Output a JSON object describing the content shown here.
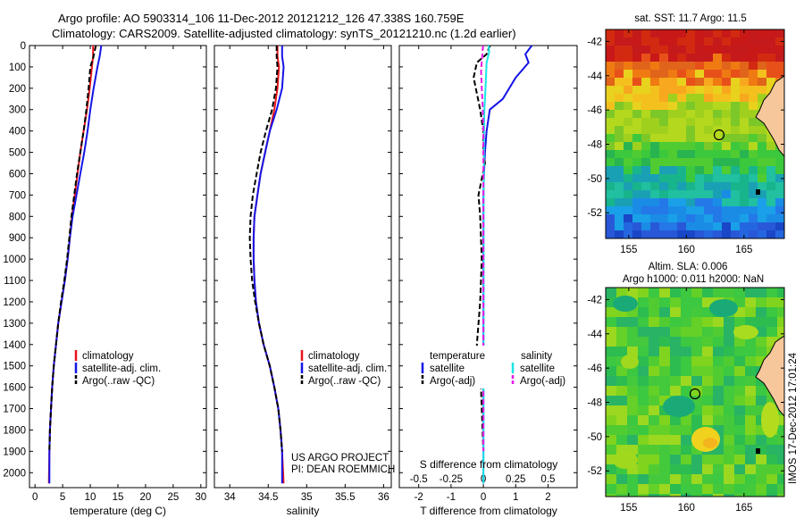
{
  "header": {
    "title_line1": "Argo profile: AO 5903314_106 11-Dec-2012 20121212_126 47.338S 160.759E",
    "title_line2": "Climatology: CARS2009. Satellite-adjusted climatology: synTS_20121210.nc (1.2d earlier)"
  },
  "depth_ticks": [
    0,
    100,
    200,
    300,
    400,
    500,
    600,
    700,
    800,
    900,
    1000,
    1100,
    1200,
    1300,
    1400,
    1500,
    1600,
    1700,
    1800,
    1900,
    2000
  ],
  "colors": {
    "climatology": "#e8141a",
    "satellite": "#1414e6",
    "argo": "#000000",
    "satellite_salinity": "#19e6e6",
    "argo_salinity": "#e619e6"
  },
  "panels": {
    "temperature": {
      "xlabel": "temperature (deg C)",
      "legend": [
        "climatology",
        "satellite-adj. clim.",
        "Argo(..raw -QC)"
      ]
    },
    "salinity": {
      "xlabel": "salinity",
      "legend": [
        "climatology",
        "satellite-adj. clim.",
        "Argo(..raw -QC)"
      ],
      "credit_line1": "US ARGO PROJECT",
      "credit_line2": "PI: DEAN ROEMMICH"
    },
    "difference": {
      "xlabel": "T difference from climatology",
      "top_label": "S difference from climatology",
      "legend_temperature_header": "temperature",
      "legend_salinity_header": "salinity",
      "legend_temperature": [
        "satellite",
        "Argo(-adj)"
      ],
      "legend_salinity": [
        "satellite",
        "Argo(-adj)"
      ]
    },
    "sst_map": {
      "title": "sat. SST: 11.7 Argo: 11.5"
    },
    "sla_map": {
      "title_line1": "Altim. SLA: 0.006",
      "title_line2": "Argo h1000: 0.011 h2000: NaN",
      "side_label": "IMOS 17-Dec-2012 17:01:24"
    }
  },
  "map_axes": {
    "lat_ticks": [
      -42,
      -44,
      -46,
      -48,
      -50,
      -52
    ],
    "lon_ticks": [
      155,
      160,
      165
    ],
    "lon_range": [
      153,
      168.5
    ],
    "lat_range": [
      -53.5,
      -41.3
    ],
    "float_position": {
      "lon": 160.759,
      "lat": -47.338
    }
  },
  "chart_data": [
    {
      "type": "line",
      "title": "temperature",
      "xlabel": "temperature (deg C)",
      "ylabel": "",
      "xlim": [
        -1,
        31
      ],
      "ylim": [
        2070,
        0
      ],
      "xticks": [
        0,
        5,
        10,
        15,
        20,
        25,
        30
      ],
      "y_reversed": true,
      "series": [
        {
          "name": "climatology",
          "style": "solid",
          "color": "#e8141a",
          "x": [
            10.5,
            10.5,
            10.3,
            9.9,
            9.4,
            8.8,
            8.2,
            7.7,
            7.2,
            6.7,
            6.3,
            5.9,
            5.4,
            4.8,
            4.2,
            3.8,
            3.4,
            3.1,
            2.9,
            2.7,
            2.6,
            2.5
          ],
          "y": [
            0,
            50,
            100,
            200,
            300,
            400,
            500,
            600,
            700,
            800,
            900,
            1000,
            1100,
            1200,
            1300,
            1400,
            1500,
            1600,
            1700,
            1800,
            1900,
            2050
          ]
        },
        {
          "name": "satellite-adj. clim.",
          "style": "solid",
          "color": "#1414e6",
          "x": [
            12.0,
            11.7,
            11.3,
            10.6,
            10.0,
            9.5,
            8.9,
            8.2,
            7.5,
            6.8,
            6.3,
            5.9,
            5.4,
            4.8,
            4.2,
            3.8,
            3.4,
            3.1,
            2.9,
            2.7,
            2.6,
            2.6
          ],
          "y": [
            0,
            50,
            100,
            200,
            300,
            400,
            500,
            600,
            700,
            800,
            900,
            1000,
            1100,
            1200,
            1300,
            1400,
            1500,
            1600,
            1700,
            1800,
            1900,
            2050
          ]
        },
        {
          "name": "Argo(..raw -QC)",
          "style": "dashed",
          "color": "#000000",
          "x": [
            11.0,
            10.5,
            10.0,
            9.7,
            9.3,
            8.8,
            8.2,
            7.6,
            7.1,
            6.6,
            6.2,
            5.8,
            5.3,
            4.7,
            4.2,
            3.8,
            3.4,
            3.1,
            2.9,
            2.7,
            2.6
          ],
          "y": [
            0,
            60,
            100,
            200,
            300,
            400,
            500,
            600,
            700,
            800,
            900,
            1000,
            1100,
            1200,
            1300,
            1400,
            1500,
            1600,
            1700,
            1800,
            1900
          ]
        }
      ]
    },
    {
      "type": "line",
      "title": "salinity",
      "xlabel": "salinity",
      "ylabel": "",
      "xlim": [
        33.8,
        36.1
      ],
      "ylim": [
        2070,
        0
      ],
      "xticks": [
        34,
        34.5,
        35,
        35.5,
        36
      ],
      "y_reversed": true,
      "series": [
        {
          "name": "climatology",
          "style": "solid",
          "color": "#e8141a",
          "x": [
            34.62,
            34.62,
            34.64,
            34.62,
            34.58,
            34.52,
            34.46,
            34.4,
            34.36,
            34.32,
            34.31,
            34.31,
            34.32,
            34.34,
            34.38,
            34.44,
            34.52,
            34.58,
            34.63,
            34.66,
            34.68,
            34.7
          ],
          "y": [
            0,
            50,
            100,
            200,
            300,
            400,
            500,
            600,
            700,
            800,
            900,
            1000,
            1100,
            1200,
            1300,
            1400,
            1500,
            1600,
            1700,
            1800,
            1900,
            2050
          ]
        },
        {
          "name": "satellite-adj. clim.",
          "style": "solid",
          "color": "#1414e6",
          "x": [
            34.68,
            34.68,
            34.7,
            34.68,
            34.61,
            34.52,
            34.46,
            34.4,
            34.36,
            34.32,
            34.31,
            34.31,
            34.32,
            34.34,
            34.38,
            34.44,
            34.52,
            34.58,
            34.63,
            34.66,
            34.68,
            34.68
          ],
          "y": [
            0,
            50,
            100,
            200,
            300,
            400,
            500,
            600,
            700,
            800,
            900,
            1000,
            1100,
            1200,
            1300,
            1400,
            1500,
            1600,
            1700,
            1800,
            1900,
            2050
          ]
        },
        {
          "name": "Argo(..raw -QC)",
          "style": "dashed",
          "color": "#000000",
          "x": [
            34.61,
            34.61,
            34.62,
            34.6,
            34.55,
            34.47,
            34.4,
            34.35,
            34.3,
            34.27,
            34.26,
            34.27,
            34.29,
            34.33,
            34.38,
            34.44,
            34.52,
            34.58,
            34.63,
            34.66,
            34.68
          ],
          "y": [
            0,
            50,
            100,
            200,
            300,
            400,
            500,
            600,
            700,
            800,
            900,
            1000,
            1100,
            1200,
            1300,
            1400,
            1500,
            1600,
            1700,
            1800,
            1900
          ]
        }
      ]
    },
    {
      "type": "line",
      "title": "T difference from climatology",
      "xlabel": "T difference from climatology",
      "top_xlabel": "S difference from climatology",
      "xlim": [
        -2.6,
        2.9
      ],
      "ylim": [
        2070,
        0
      ],
      "xticks": [
        -2,
        -1,
        0,
        1,
        2
      ],
      "top_xticks": [
        -0.5,
        -0.25,
        0,
        0.25,
        0.5
      ],
      "y_reversed": true,
      "series": [
        {
          "name": "temperature satellite",
          "style": "solid",
          "color": "#1414e6",
          "x": [
            1.5,
            1.3,
            1.4,
            1.0,
            0.6,
            0.2,
            0.1,
            0.05,
            0.02,
            0,
            0,
            0,
            0,
            0,
            0,
            0
          ],
          "y": [
            0,
            40,
            80,
            150,
            250,
            300,
            400,
            500,
            600,
            700,
            900,
            1100,
            1300,
            1500,
            1700,
            2050
          ]
        },
        {
          "name": "temperature Argo(-adj)",
          "style": "dashed",
          "color": "#000000",
          "x": [
            0.2,
            0.1,
            -0.2,
            -0.3,
            -0.1,
            0,
            0,
            0.05,
            -0.15,
            -0.1,
            -0.05,
            -0.1,
            -0.2,
            -0.1,
            -0.05,
            0
          ],
          "y": [
            0,
            40,
            80,
            150,
            300,
            400,
            500,
            550,
            700,
            800,
            1000,
            1200,
            1400,
            1500,
            1700,
            1900
          ]
        },
        {
          "name": "salinity satellite",
          "style": "solid",
          "color": "#19e6e6",
          "x": [
            0.16,
            0.18,
            0.1,
            0.08,
            0.05,
            0.03,
            0.02,
            0.02,
            0.01,
            0.01,
            0.01,
            0.01,
            0.01,
            0
          ],
          "y": [
            0,
            30,
            80,
            150,
            250,
            300,
            400,
            500,
            700,
            900,
            1100,
            1300,
            1500,
            2050
          ]
        },
        {
          "name": "salinity Argo(-adj)",
          "style": "dashed",
          "color": "#e619e6",
          "x": [
            -0.01,
            -0.04,
            -0.07,
            -0.05,
            -0.02,
            0,
            0,
            0,
            0,
            0,
            0,
            0
          ],
          "y": [
            0,
            60,
            120,
            200,
            280,
            400,
            600,
            900,
            1200,
            1500,
            1700,
            1900
          ]
        }
      ]
    },
    {
      "type": "heatmap",
      "title": "sat. SST: 11.7 Argo: 11.5",
      "note": "sea surface temperature map with float position marked by a circle"
    },
    {
      "type": "heatmap",
      "title": "Altim. SLA: 0.006",
      "note": "sea level anomaly map with float position marked by a circle"
    }
  ]
}
